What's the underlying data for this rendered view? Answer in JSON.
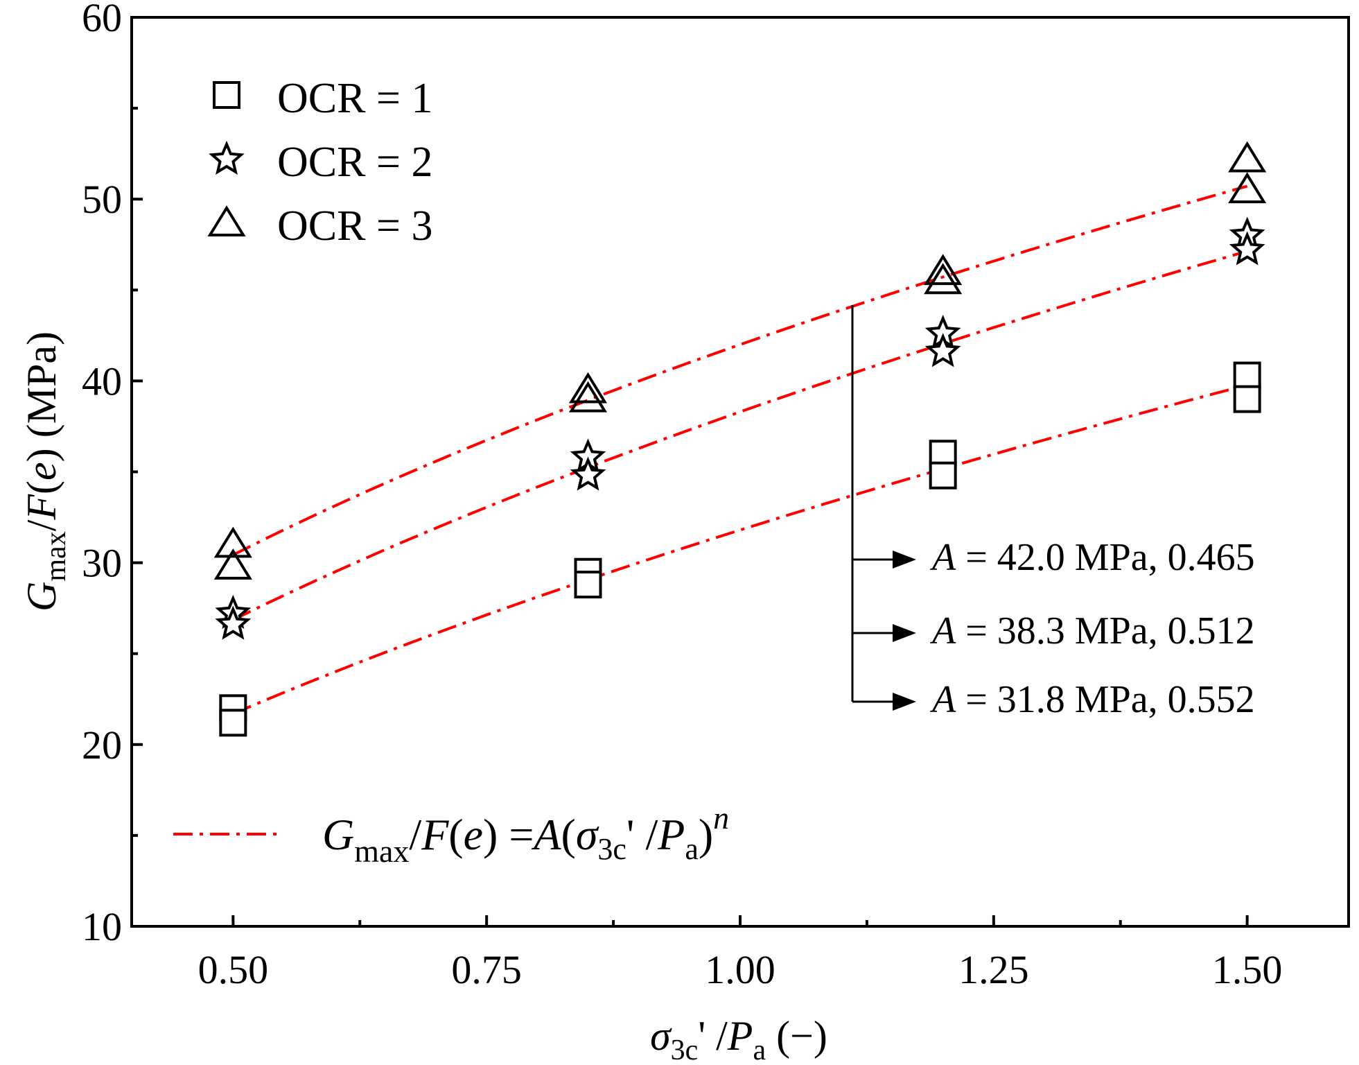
{
  "chart_data": {
    "type": "scatter",
    "title": "",
    "xlabel": {
      "sigma": "σ",
      "sub": "3c",
      "mid": "' /",
      "p": "P",
      "psub": "a",
      "end": " (−)"
    },
    "ylabel": {
      "g": "G",
      "gsub": "max",
      "mid": "/",
      "f": "F",
      "open": "(",
      "e": "e",
      "close": ")",
      "units": " (MPa)"
    },
    "xlim": [
      0.4,
      1.6
    ],
    "ylim": [
      10,
      60
    ],
    "xticks": [
      {
        "value": 0.5,
        "label": "0.50"
      },
      {
        "value": 0.75,
        "label": "0.75"
      },
      {
        "value": 1.0,
        "label": "1.00"
      },
      {
        "value": 1.25,
        "label": "1.25"
      },
      {
        "value": 1.5,
        "label": "1.50"
      }
    ],
    "yticks": [
      {
        "value": 10,
        "label": "10"
      },
      {
        "value": 20,
        "label": "20"
      },
      {
        "value": 30,
        "label": "30"
      },
      {
        "value": 40,
        "label": "40"
      },
      {
        "value": 50,
        "label": "50"
      },
      {
        "value": 60,
        "label": "60"
      }
    ],
    "series": [
      {
        "name": "OCR = 1",
        "marker": "square",
        "points": [
          [
            0.5,
            22.0
          ],
          [
            0.5,
            21.2
          ],
          [
            0.85,
            29.5
          ],
          [
            0.85,
            28.8
          ],
          [
            1.2,
            36.0
          ],
          [
            1.2,
            34.8
          ],
          [
            1.5,
            40.3
          ],
          [
            1.5,
            39.0
          ]
        ],
        "fit": {
          "A": 31.8,
          "n": 0.552
        }
      },
      {
        "name": "OCR = 2",
        "marker": "star",
        "points": [
          [
            0.5,
            27.2
          ],
          [
            0.5,
            26.6
          ],
          [
            0.85,
            35.8
          ],
          [
            0.85,
            34.8
          ],
          [
            1.2,
            42.6
          ],
          [
            1.2,
            41.6
          ],
          [
            1.5,
            48.0
          ],
          [
            1.5,
            47.2
          ]
        ],
        "fit": {
          "A": 38.3,
          "n": 0.512
        }
      },
      {
        "name": "OCR = 3",
        "marker": "triangle",
        "points": [
          [
            0.5,
            31.0
          ],
          [
            0.5,
            29.8
          ],
          [
            0.85,
            39.5
          ],
          [
            0.85,
            39.0
          ],
          [
            1.2,
            46.0
          ],
          [
            1.2,
            45.5
          ],
          [
            1.5,
            52.2
          ],
          [
            1.5,
            50.5
          ]
        ],
        "fit": {
          "A": 42.0,
          "n": 0.465
        }
      }
    ],
    "legend": [
      {
        "label": "OCR = 1",
        "marker": "square"
      },
      {
        "label": "OCR = 2",
        "marker": "star"
      },
      {
        "label": "OCR = 3",
        "marker": "triangle"
      }
    ],
    "fit_legend": {
      "g": "G",
      "gsub": "max",
      "mid": "/",
      "f": "F",
      "open": "(",
      "e": "e",
      "close": ")",
      "eq": " =",
      "a": "A",
      "open2": "(",
      "sigma": "σ",
      "sigsub": "3c",
      "mid2": "' /",
      "p": "P",
      "psub": "a",
      "close2": ")",
      "n": "n"
    },
    "annotations": [
      {
        "a": "A",
        "rest": " = 42.0 MPa, 0.465"
      },
      {
        "a": "A",
        "rest": " = 38.3 MPa, 0.512"
      },
      {
        "a": "A",
        "rest": " = 31.8 MPa, 0.552"
      }
    ],
    "colors": {
      "fit": "#ff0000",
      "marker": "#000000",
      "axis": "#000000"
    }
  }
}
